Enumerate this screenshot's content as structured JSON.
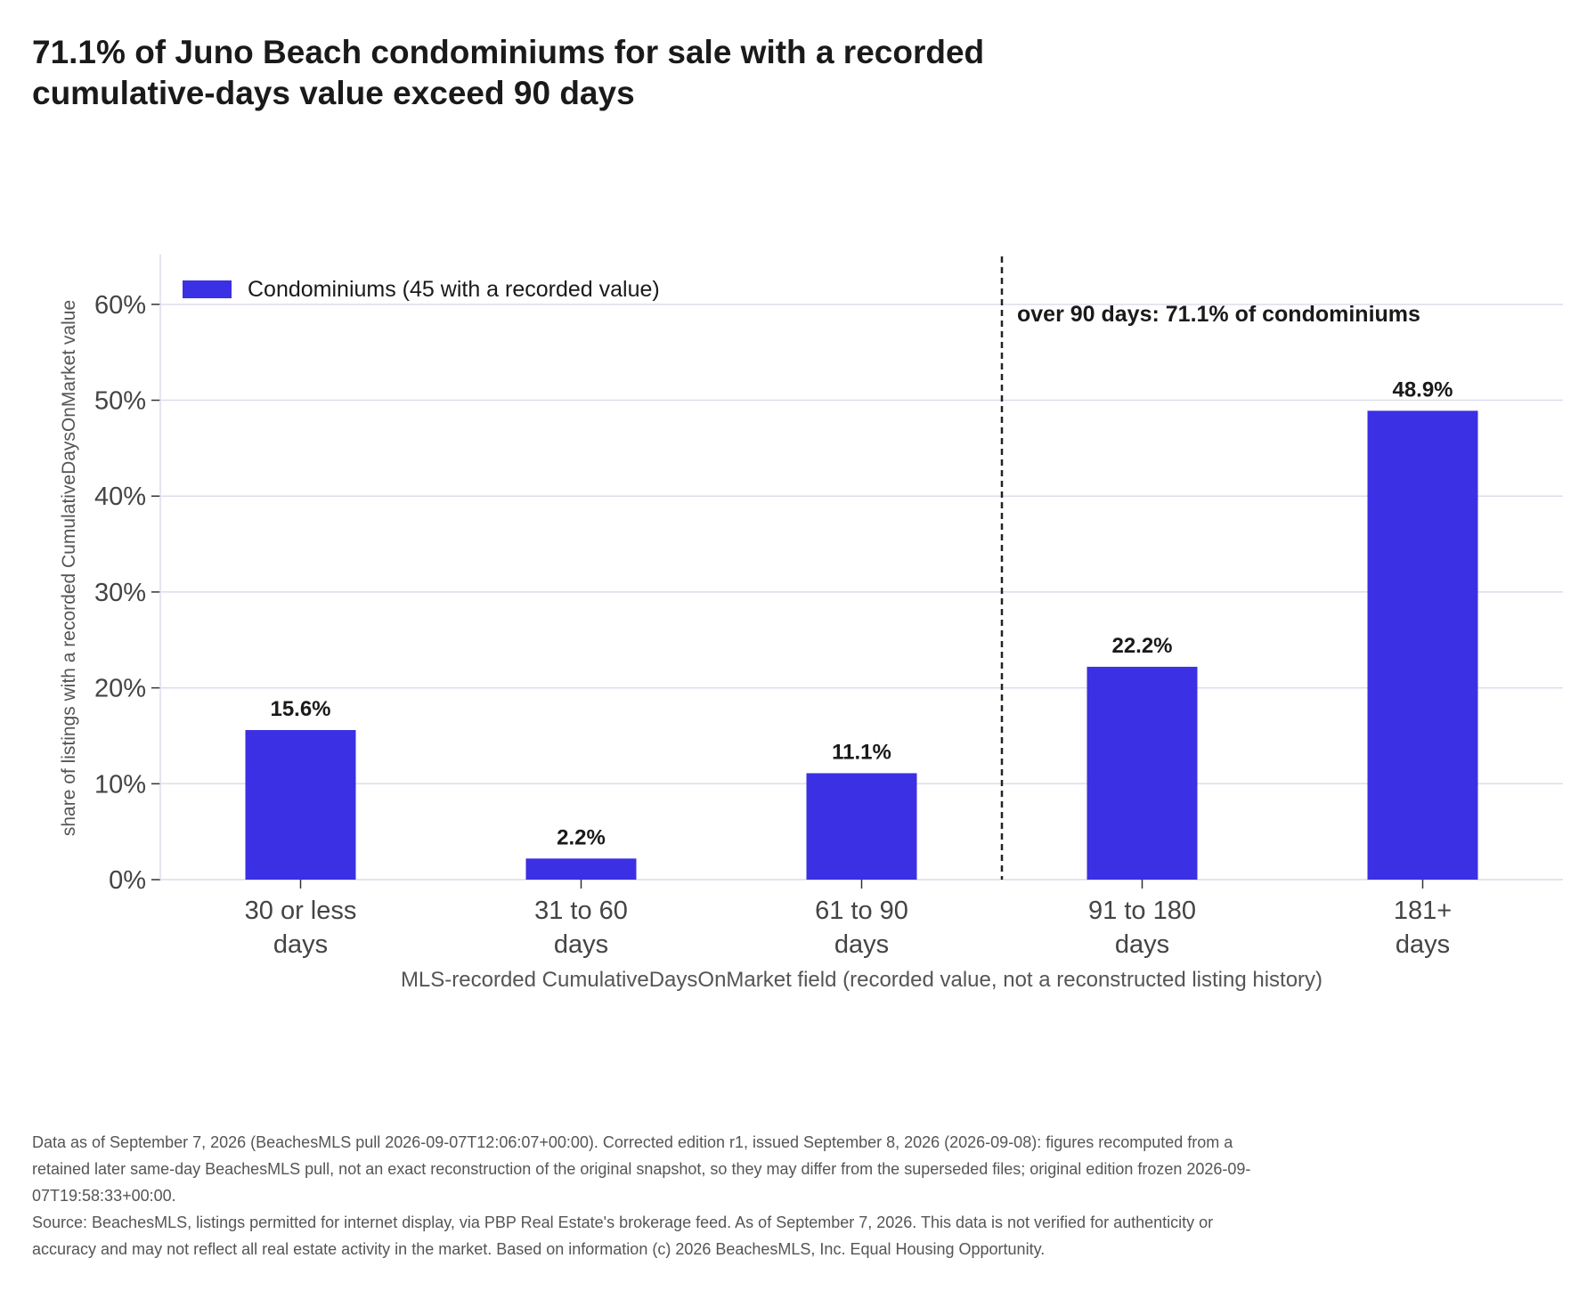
{
  "title": "71.1% of Juno Beach condominiums for sale with a recorded cumulative-days value exceed 90 days",
  "footnotes": {
    "data_note": "Data as of September 7, 2026 (BeachesMLS pull 2026-09-07T12:06:07+00:00). Corrected edition r1, issued September 8, 2026 (2026-09-08): figures recomputed from a retained later same-day BeachesMLS pull, not an exact reconstruction of the original snapshot, so they may differ from the superseded files; original edition frozen 2026-09-07T19:58:33+00:00.",
    "source": "Source: BeachesMLS, listings permitted for internet display, via PBP Real Estate's brokerage feed. As of September 7, 2026. This data is not verified for authenticity or accuracy and may not reflect all real estate activity in the market. Based on information (c) 2026 BeachesMLS, Inc. Equal Housing Opportunity."
  },
  "chart_data": {
    "type": "bar",
    "categories": [
      [
        "30 or less",
        "days"
      ],
      [
        "31 to 60",
        "days"
      ],
      [
        "61 to 90",
        "days"
      ],
      [
        "91 to 180",
        "days"
      ],
      [
        "181+",
        "days"
      ]
    ],
    "series": [
      {
        "name": "Condominiums (45 with a recorded value)",
        "values": [
          15.6,
          2.2,
          11.1,
          22.2,
          48.9
        ],
        "color": "#3b30e3"
      }
    ],
    "data_labels": [
      "15.6%",
      "2.2%",
      "11.1%",
      "22.2%",
      "48.9%"
    ],
    "xlabel": "MLS-recorded CumulativeDaysOnMarket field (recorded value, not a reconstructed listing history)",
    "ylabel": "share of listings with a recorded CumulativeDaysOnMarket value",
    "ylim": [
      0,
      65
    ],
    "yticks": [
      0,
      10,
      20,
      30,
      40,
      50,
      60
    ],
    "ytick_labels": [
      "0%",
      "10%",
      "20%",
      "30%",
      "40%",
      "50%",
      "60%"
    ],
    "grid": true,
    "legend_position": "top-left",
    "annotation": {
      "text": "over 90 days: 71.1% of condominiums",
      "threshold_between_categories": [
        2,
        3
      ],
      "line_style": "dashed"
    }
  },
  "colors": {
    "bar": "#3b30e3",
    "grid": "#dcdcec",
    "text": "#1a1a1a",
    "muted": "#555555"
  }
}
